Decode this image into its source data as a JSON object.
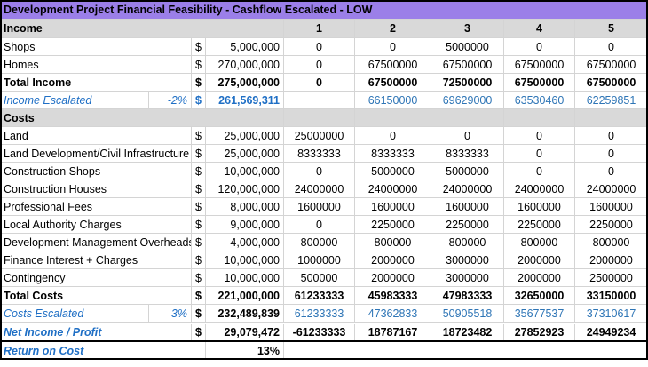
{
  "title": "Development Project Financial Feasibility - Cashflow Escalated - LOW",
  "income_header": "Income",
  "periods": [
    "1",
    "2",
    "3",
    "4",
    "5"
  ],
  "currency": "$",
  "income_rows": [
    {
      "label": "Shops",
      "total": "5,000,000",
      "v": [
        "0",
        "0",
        "5000000",
        "0",
        "0"
      ]
    },
    {
      "label": "Homes",
      "total": "270,000,000",
      "v": [
        "0",
        "67500000",
        "67500000",
        "67500000",
        "67500000"
      ]
    }
  ],
  "total_income": {
    "label": "Total Income",
    "total": "275,000,000",
    "v": [
      "0",
      "67500000",
      "72500000",
      "67500000",
      "67500000"
    ]
  },
  "income_escalated": {
    "label": "Income Escalated",
    "rate": "-2%",
    "total": "261,569,311",
    "v": [
      "",
      "66150000",
      "69629000",
      "63530460",
      "62259851"
    ]
  },
  "costs_header": "Costs",
  "cost_rows": [
    {
      "label": "Land",
      "total": "25,000,000",
      "v": [
        "25000000",
        "0",
        "0",
        "0",
        "0"
      ]
    },
    {
      "label": "Land Development/Civil Infrastructure",
      "total": "25,000,000",
      "v": [
        "8333333",
        "8333333",
        "8333333",
        "0",
        "0"
      ]
    },
    {
      "label": "Construction Shops",
      "total": "10,000,000",
      "v": [
        "0",
        "5000000",
        "5000000",
        "0",
        "0"
      ]
    },
    {
      "label": "Construction Houses",
      "total": "120,000,000",
      "v": [
        "24000000",
        "24000000",
        "24000000",
        "24000000",
        "24000000"
      ]
    },
    {
      "label": "Professional Fees",
      "total": "8,000,000",
      "v": [
        "1600000",
        "1600000",
        "1600000",
        "1600000",
        "1600000"
      ]
    },
    {
      "label": "Local Authority Charges",
      "total": "9,000,000",
      "v": [
        "0",
        "2250000",
        "2250000",
        "2250000",
        "2250000"
      ]
    },
    {
      "label": "Development Management Overheads",
      "total": "4,000,000",
      "v": [
        "800000",
        "800000",
        "800000",
        "800000",
        "800000"
      ]
    },
    {
      "label": "Finance Interest + Charges",
      "total": "10,000,000",
      "v": [
        "1000000",
        "2000000",
        "3000000",
        "2000000",
        "2000000"
      ]
    },
    {
      "label": "Contingency",
      "total": "10,000,000",
      "v": [
        "500000",
        "2000000",
        "3000000",
        "2000000",
        "2500000"
      ]
    }
  ],
  "total_costs": {
    "label": "Total Costs",
    "total": "221,000,000",
    "v": [
      "61233333",
      "45983333",
      "47983333",
      "32650000",
      "33150000"
    ]
  },
  "costs_escalated": {
    "label": "Costs Escalated",
    "rate": "3%",
    "total": "232,489,839",
    "v": [
      "61233333",
      "47362833",
      "50905518",
      "35677537",
      "37310617"
    ]
  },
  "net_income": {
    "label": "Net Income / Profit",
    "total": "29,079,472",
    "v": [
      "-61233333",
      "18787167",
      "18723482",
      "27852923",
      "24949234"
    ]
  },
  "return_on_cost": {
    "label": "Return on Cost",
    "value": "13%"
  }
}
